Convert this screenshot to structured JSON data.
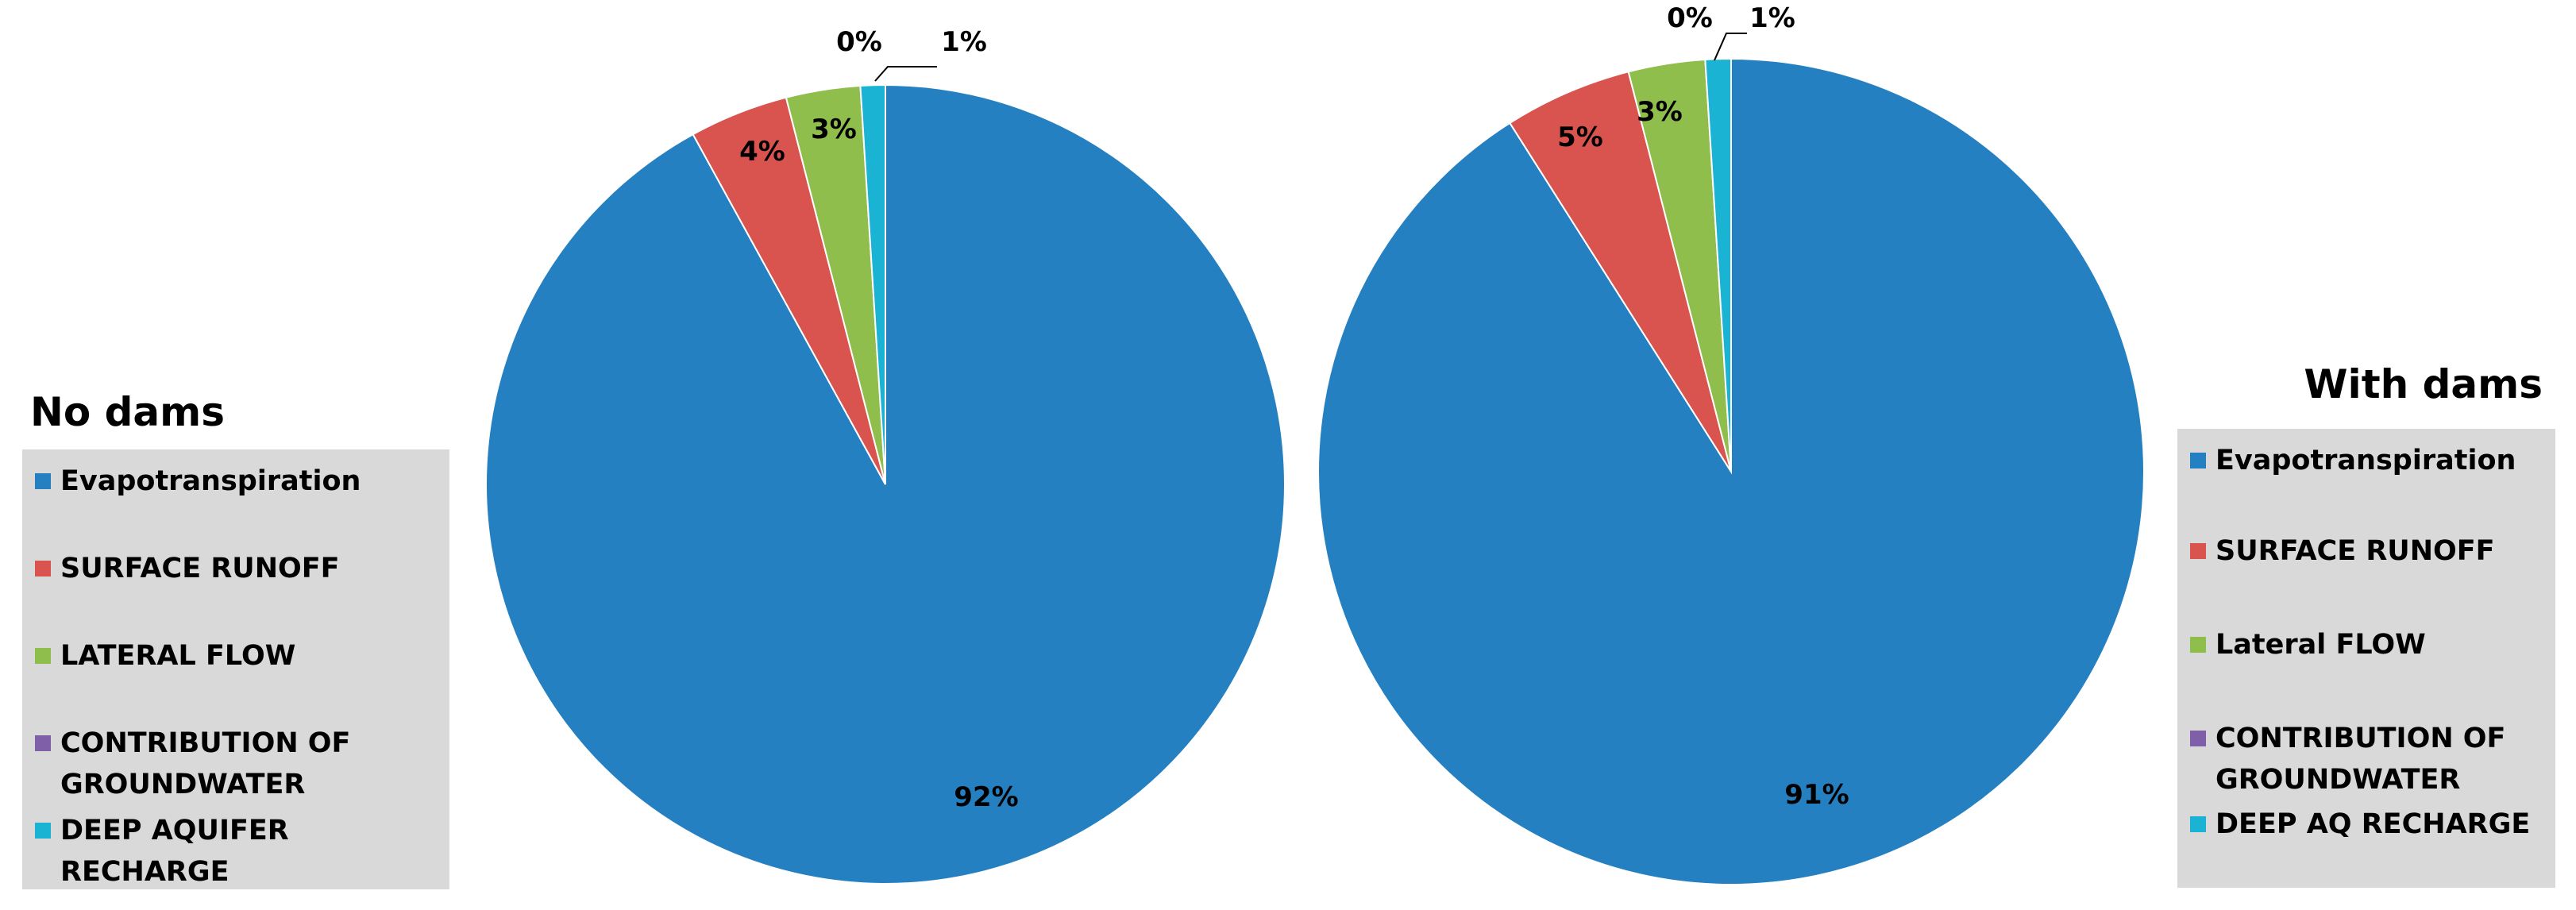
{
  "chart_data": [
    {
      "type": "pie",
      "title": "No dams",
      "categories": [
        "Evapotranspiration",
        "SURFACE RUNOFF",
        "LATERAL FLOW",
        "CONTRIBUTION OF GROUNDWATER",
        "DEEP AQUIFER RECHARGE"
      ],
      "values": [
        92,
        4,
        3,
        0,
        1
      ],
      "labels": [
        "92%",
        "4%",
        "3%",
        "0%",
        "1%"
      ],
      "colors": [
        "#2580c2",
        "#d9534f",
        "#8fbe4d",
        "#7f5fa8",
        "#1bb3d3"
      ],
      "legend_position": "left"
    },
    {
      "type": "pie",
      "title": "With dams",
      "categories": [
        "Evapotranspiration",
        "SURFACE RUNOFF",
        "Lateral FLOW",
        "CONTRIBUTION OF GROUNDWATER",
        "DEEP AQ RECHARGE"
      ],
      "values": [
        91,
        5,
        3,
        0,
        1
      ],
      "labels": [
        "91%",
        "5%",
        "3%",
        "0%",
        "1%"
      ],
      "colors": [
        "#2580c2",
        "#d9534f",
        "#8fbe4d",
        "#7f5fa8",
        "#1bb3d3"
      ],
      "legend_position": "right"
    }
  ]
}
